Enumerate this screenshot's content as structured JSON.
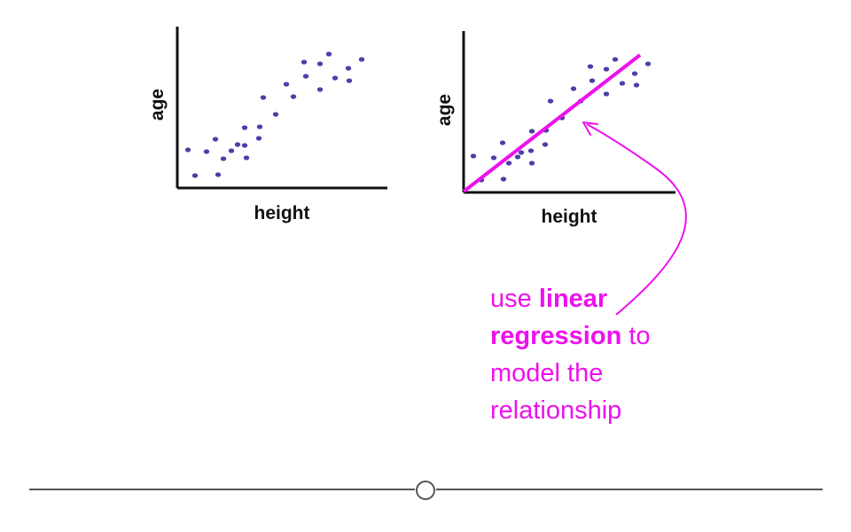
{
  "colors": {
    "point": "#4b3fa8",
    "accent": "#ee10ee",
    "axis": "#111111",
    "slider_track": "#555555"
  },
  "charts": {
    "left": {
      "xlabel": "height",
      "ylabel": "age"
    },
    "right": {
      "xlabel": "height",
      "ylabel": "age",
      "trend_line": "linear regression fit"
    }
  },
  "annotation": {
    "part1": "use ",
    "bold": "linear regression",
    "part2": " to model the relationship"
  },
  "slider": {
    "handle_icon": "circle-handle-icon"
  }
}
